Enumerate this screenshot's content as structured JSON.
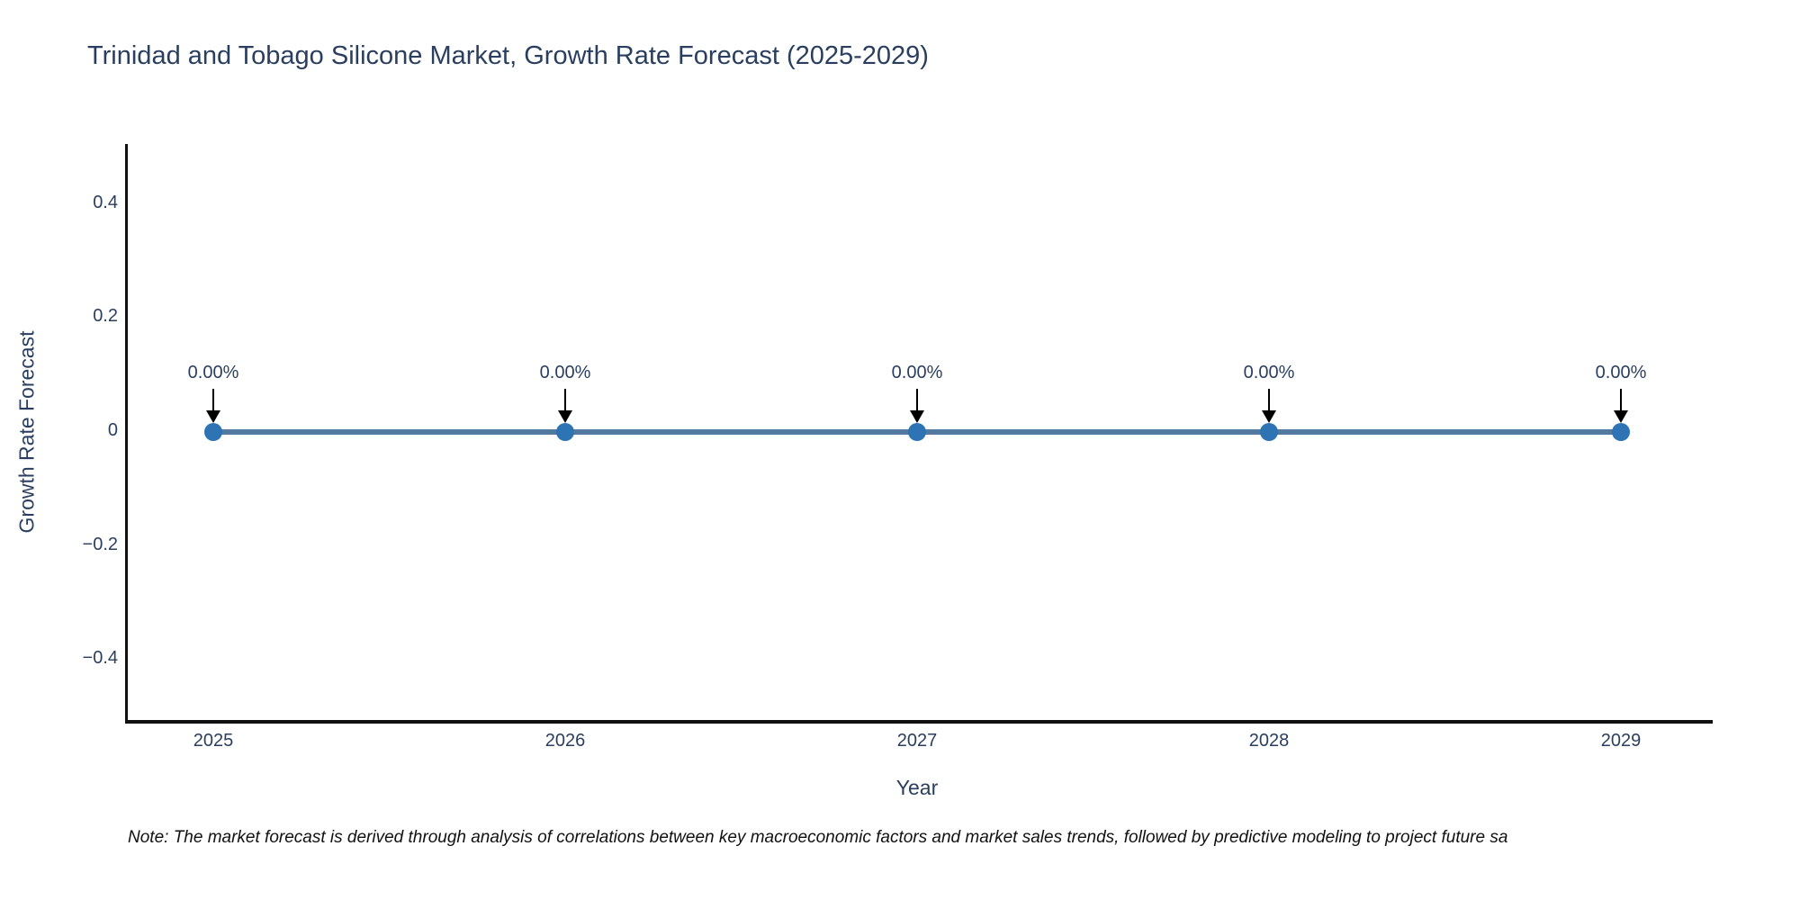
{
  "note": {
    "text": "Note: The market forecast is derived through analysis of correlations between key macroeconomic factors and market sales trends, followed by predictive modeling to project future sa"
  },
  "colors": {
    "title_text": "#2a3f5f",
    "tick_text": "#2a3f5f",
    "axis_line": "#111111",
    "series_line": "#54799e",
    "marker_fill": "#2e74b4",
    "annotation_arrow": "#000000",
    "note_text": "#111111",
    "background": "#ffffff"
  },
  "chart_data": {
    "type": "line",
    "title": "Trinidad and Tobago Silicone Market, Growth Rate Forecast (2025-2029)",
    "xlabel": "Year",
    "ylabel": "Growth Rate Forecast",
    "categories": [
      "2025",
      "2026",
      "2027",
      "2028",
      "2029"
    ],
    "series": [
      {
        "name": "Growth Rate Forecast",
        "values": [
          0,
          0,
          0,
          0,
          0
        ]
      }
    ],
    "annotations": [
      "0.00%",
      "0.00%",
      "0.00%",
      "0.00%",
      "0.00%"
    ],
    "yticks": [
      {
        "label": "0.4",
        "value": 0.4
      },
      {
        "label": "0.2",
        "value": 0.2
      },
      {
        "label": "0",
        "value": 0
      },
      {
        "label": "−0.2",
        "value": -0.2
      },
      {
        "label": "−0.4",
        "value": -0.4
      }
    ],
    "ylim": [
      -0.5,
      0.5
    ],
    "grid": false,
    "legend": "none",
    "marker_style": "circle",
    "annotation_style": "down-arrow"
  }
}
